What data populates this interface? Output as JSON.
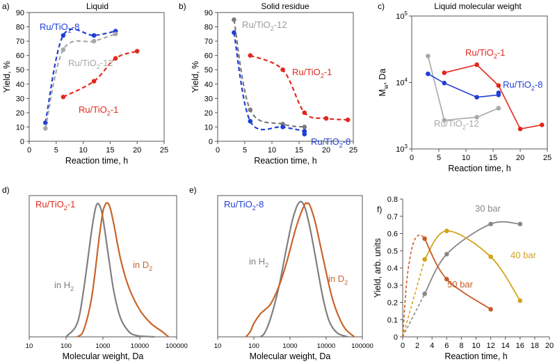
{
  "chart_data": [
    {
      "id": "a",
      "type": "line",
      "panel_label": "a)",
      "title": "Liquid",
      "xlabel": "Reaction time, h",
      "ylabel": "Yield, %",
      "xlim": [
        0,
        25
      ],
      "ylim": [
        0,
        90
      ],
      "xticks": [
        "0",
        "5",
        "10",
        "15",
        "20",
        "25"
      ],
      "yticks": [
        "0",
        "10",
        "20",
        "30",
        "40",
        "50",
        "60",
        "70",
        "80",
        "90"
      ],
      "series": [
        {
          "name": "Ru/TiO2-8",
          "color": "#1f3fd6",
          "dashed": true,
          "x": [
            3,
            6.3,
            12,
            16
          ],
          "y": [
            13,
            74,
            74,
            77
          ]
        },
        {
          "name": "Ru/TiO2-12",
          "color": "#a8a8a8",
          "dashed": true,
          "x": [
            3,
            6.3,
            12,
            16
          ],
          "y": [
            9,
            64,
            70,
            75
          ]
        },
        {
          "name": "Ru/TiO2-1",
          "color": "#e0281e",
          "dashed": true,
          "x": [
            6.3,
            12,
            16,
            20
          ],
          "y": [
            31,
            42,
            58,
            63
          ]
        }
      ],
      "labels": [
        {
          "series": 0,
          "main": "Ru/TiO",
          "sub": "2",
          "tail": "-8"
        },
        {
          "series": 1,
          "main": "Ru/TiO",
          "sub": "2",
          "tail": "-12"
        },
        {
          "series": 2,
          "main": "Ru/TiO",
          "sub": "2",
          "tail": "-1"
        }
      ]
    },
    {
      "id": "b",
      "type": "line",
      "panel_label": "b)",
      "title": "Solid residue",
      "xlabel": "Reaction time, h",
      "ylabel": "Yield, %",
      "xlim": [
        0,
        25
      ],
      "ylim": [
        0,
        90
      ],
      "xticks": [
        "0",
        "5",
        "10",
        "15",
        "20",
        "25"
      ],
      "yticks": [
        "0",
        "10",
        "20",
        "30",
        "40",
        "50",
        "60",
        "70",
        "80",
        "90"
      ],
      "series": [
        {
          "name": "Ru/TiO2-12",
          "color": "#7a7a7a",
          "dashed": true,
          "x": [
            3,
            6,
            12,
            16
          ],
          "y": [
            85,
            22,
            12,
            10
          ]
        },
        {
          "name": "Ru/TiO2-8",
          "color": "#1f3fd6",
          "dashed": true,
          "x": [
            3,
            6,
            12,
            16,
            16
          ],
          "y": [
            76,
            14,
            10,
            7,
            5
          ]
        },
        {
          "name": "Ru/TiO2-1",
          "color": "#e0281e",
          "dashed": true,
          "x": [
            6,
            12,
            16,
            20,
            24
          ],
          "y": [
            60,
            50,
            20,
            16,
            15
          ]
        }
      ],
      "labels": [
        {
          "series": 0,
          "main": "Ru/TiO",
          "sub": "2",
          "tail": "-12"
        },
        {
          "series": 1,
          "main": "Ru/TiO",
          "sub": "2",
          "tail": "-8"
        },
        {
          "series": 2,
          "main": "Ru/TiO",
          "sub": "2",
          "tail": "-1"
        }
      ]
    },
    {
      "id": "c",
      "type": "line",
      "panel_label": "c)",
      "title": "Liquid molecular weight",
      "xlabel": "Reaction time, h",
      "ylabel": "M",
      "ylabel_sub": "w",
      "ylabel_tail": ", Da",
      "yscale": "log",
      "xlim": [
        0,
        25
      ],
      "ylim": [
        1000,
        100000
      ],
      "xticks": [
        "0",
        "5",
        "10",
        "15",
        "20",
        "25"
      ],
      "yticks": [
        {
          "value": 1000,
          "base": "10",
          "exp": "3"
        },
        {
          "value": 10000,
          "base": "10",
          "exp": "4"
        },
        {
          "value": 100000,
          "base": "10",
          "exp": "5"
        }
      ],
      "series": [
        {
          "name": "Ru/TiO2-12",
          "color": "#a8a8a8",
          "dashed": false,
          "x": [
            3,
            6,
            12,
            16
          ],
          "y": [
            25000,
            2700,
            3000,
            4100
          ]
        },
        {
          "name": "Ru/TiO2-8",
          "color": "#1f3fd6",
          "dashed": false,
          "x": [
            3,
            6,
            12,
            16,
            16
          ],
          "y": [
            13500,
            9800,
            6000,
            6500,
            7000
          ]
        },
        {
          "name": "Ru/TiO2-1",
          "color": "#e0281e",
          "dashed": false,
          "x": [
            6,
            12,
            16,
            20,
            24
          ],
          "y": [
            14000,
            18500,
            9000,
            2000,
            2300
          ]
        }
      ],
      "labels": [
        {
          "series": 2,
          "main": "Ru/TiO",
          "sub": "2",
          "tail": "-1"
        },
        {
          "series": 1,
          "main": "Ru/TiO",
          "sub": "2",
          "tail": "-8"
        },
        {
          "series": 0,
          "main": "Ru/TiO",
          "sub": "2",
          "tail": "-12"
        }
      ]
    },
    {
      "id": "d",
      "type": "line",
      "panel_label": "d)",
      "xlabel": "Molecular weight, Da",
      "xscale": "log",
      "xlim": [
        10,
        100000
      ],
      "ylim": [
        0,
        1.05
      ],
      "xticks": [
        "10",
        "100",
        "1000",
        "10000",
        "100000"
      ],
      "inset_label": {
        "main": "Ru/TiO",
        "sub": "2",
        "tail": "-1",
        "color": "#e0281e"
      },
      "series": [
        {
          "name": "in H2",
          "color": "#7f7f7f",
          "x": [
            100,
            200,
            300,
            500,
            650,
            800,
            1000,
            1500,
            2000,
            3000,
            5000,
            8000,
            15000,
            25000
          ],
          "y": [
            0.0,
            0.1,
            0.35,
            0.8,
            0.97,
            0.98,
            0.88,
            0.55,
            0.33,
            0.14,
            0.04,
            0.01,
            0.003,
            0.0
          ]
        },
        {
          "name": "in D2",
          "color": "#c8642a",
          "x": [
            200,
            300,
            500,
            800,
            1000,
            1200,
            1400,
            1600,
            2000,
            3000,
            5000,
            10000,
            20000,
            40000,
            60000
          ],
          "y": [
            0.0,
            0.05,
            0.3,
            0.75,
            0.93,
            0.99,
            0.99,
            0.95,
            0.83,
            0.58,
            0.37,
            0.2,
            0.1,
            0.04,
            0.0
          ]
        }
      ],
      "labels": [
        {
          "series": 0,
          "main": "in H",
          "sub": "2",
          "tail": ""
        },
        {
          "series": 1,
          "main": "in D",
          "sub": "2",
          "tail": ""
        }
      ]
    },
    {
      "id": "e",
      "type": "line",
      "panel_label": "e)",
      "xlabel": "Molecular weight, Da",
      "xscale": "log",
      "xlim": [
        10,
        100000
      ],
      "ylim": [
        0,
        1.05
      ],
      "xticks": [
        "10",
        "100",
        "1000",
        "10000",
        "100000"
      ],
      "inset_label": {
        "main": "Ru/TiO",
        "sub": "2",
        "tail": "-8",
        "color": "#1f3fd6"
      },
      "series": [
        {
          "name": "in H2",
          "color": "#7f7f7f",
          "x": [
            150,
            200,
            300,
            500,
            800,
            1200,
            1800,
            2500,
            3500,
            5000,
            8000,
            12000,
            20000,
            40000
          ],
          "y": [
            0.0,
            0.03,
            0.15,
            0.38,
            0.66,
            0.88,
            1.0,
            0.97,
            0.82,
            0.6,
            0.3,
            0.12,
            0.03,
            0.0
          ]
        },
        {
          "name": "in D2",
          "color": "#c8642a",
          "x": [
            60,
            80,
            100,
            150,
            200,
            300,
            500,
            800,
            1500,
            2500,
            3000,
            3500,
            5000,
            8000,
            15000,
            30000,
            60000
          ],
          "y": [
            0.0,
            0.04,
            0.1,
            0.17,
            0.2,
            0.25,
            0.38,
            0.55,
            0.82,
            0.98,
            0.99,
            0.98,
            0.85,
            0.6,
            0.28,
            0.08,
            0.0
          ]
        }
      ],
      "labels": [
        {
          "series": 0,
          "main": "in H",
          "sub": "2",
          "tail": ""
        },
        {
          "series": 1,
          "main": "in D",
          "sub": "2",
          "tail": ""
        }
      ]
    },
    {
      "id": "f",
      "type": "line",
      "panel_label": "f)",
      "xlabel": "Reaction time, h",
      "ylabel": "Yield, arb. units",
      "xlim": [
        0,
        20
      ],
      "ylim": [
        0,
        0.8
      ],
      "xticks": [
        "0",
        "2",
        "4",
        "6",
        "8",
        "10",
        "12",
        "14",
        "16",
        "18",
        "20"
      ],
      "yticks": [
        "0",
        "0.1",
        "0.2",
        "0.3",
        "0.4",
        "0.5",
        "0.6",
        "0.7",
        "0.8"
      ],
      "series": [
        {
          "name": "30 bar",
          "color": "#888888",
          "dashed_x": [
            0,
            3
          ],
          "dashed_y": [
            0,
            0.25
          ],
          "x": [
            3,
            6,
            12,
            16
          ],
          "y": [
            0.25,
            0.48,
            0.655,
            0.655
          ],
          "markers": [
            [
              3,
              0.25
            ],
            [
              6,
              0.48
            ],
            [
              12,
              0.655
            ],
            [
              16,
              0.655
            ]
          ]
        },
        {
          "name": "40 bar",
          "color": "#d4a21a",
          "dashed_x": [
            0,
            3
          ],
          "dashed_y": [
            0,
            0.45
          ],
          "x": [
            3,
            6,
            12,
            16
          ],
          "y": [
            0.45,
            0.615,
            0.465,
            0.21
          ],
          "markers": [
            [
              3,
              0.45
            ],
            [
              6,
              0.615
            ],
            [
              12,
              0.465
            ],
            [
              16,
              0.21
            ]
          ]
        },
        {
          "name": "50 bar",
          "color": "#c85a28",
          "dashed_x": [
            0,
            0.5,
            1,
            1.5,
            2,
            2.5,
            3
          ],
          "dashed_y": [
            0,
            0.3,
            0.46,
            0.55,
            0.585,
            0.59,
            0.57
          ],
          "x": [
            3,
            6,
            12
          ],
          "y": [
            0.57,
            0.335,
            0.16
          ],
          "markers": [
            [
              3,
              0.57
            ],
            [
              6,
              0.335
            ],
            [
              12,
              0.16
            ]
          ]
        }
      ],
      "labels": [
        {
          "series": 0,
          "main": "30 bar",
          "sub": "",
          "tail": ""
        },
        {
          "series": 1,
          "main": "40 bar",
          "sub": "",
          "tail": ""
        },
        {
          "series": 2,
          "main": "50 bar",
          "sub": "",
          "tail": ""
        }
      ]
    }
  ]
}
